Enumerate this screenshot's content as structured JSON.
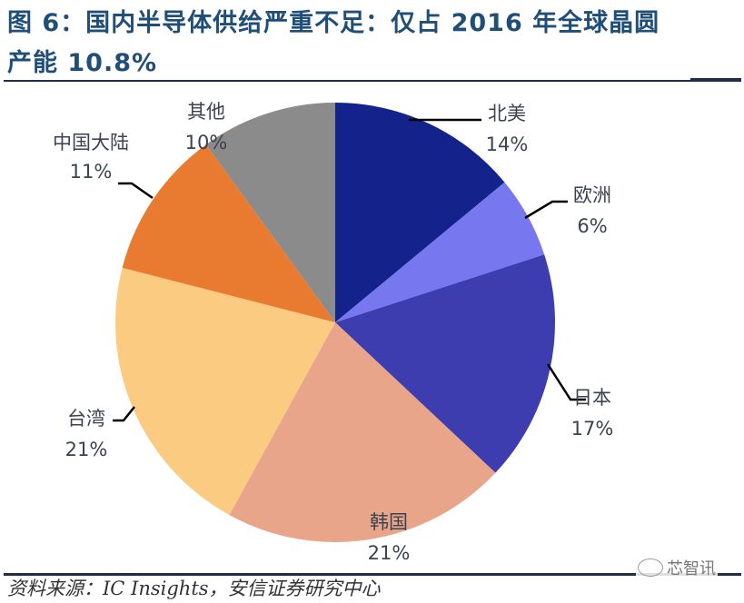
{
  "chart_data": {
    "type": "pie",
    "title": "图 6：国内半导体供给严重不足：仅占 2016 年全球晶圆产能 10.8%",
    "start_angle_deg": 90,
    "direction": "clockwise",
    "slices": [
      {
        "label": "北美",
        "value": 14,
        "value_label": "14%",
        "color": "#13238b"
      },
      {
        "label": "欧洲",
        "value": 6,
        "value_label": "6%",
        "color": "#7777f0"
      },
      {
        "label": "日本",
        "value": 17,
        "value_label": "17%",
        "color": "#3d3db0"
      },
      {
        "label": "韩国",
        "value": 21,
        "value_label": "21%",
        "color": "#e9a58a"
      },
      {
        "label": "台湾",
        "value": 21,
        "value_label": "21%",
        "color": "#fbcb82"
      },
      {
        "label": "中国大陆",
        "value": 11,
        "value_label": "11%",
        "color": "#e97b31"
      },
      {
        "label": "其他",
        "value": 10,
        "value_label": "10%",
        "color": "#8b8b8b"
      }
    ],
    "legend": "none",
    "data_labels": "outside"
  },
  "header": {
    "title_line1": "图 6：国内半导体供给严重不足：仅占 2016 年全球晶圆",
    "title_line2": "产能 10.8%"
  },
  "footer": {
    "source": "资料来源：IC Insights，安信证券研究中心",
    "watermark": "芯智讯"
  }
}
